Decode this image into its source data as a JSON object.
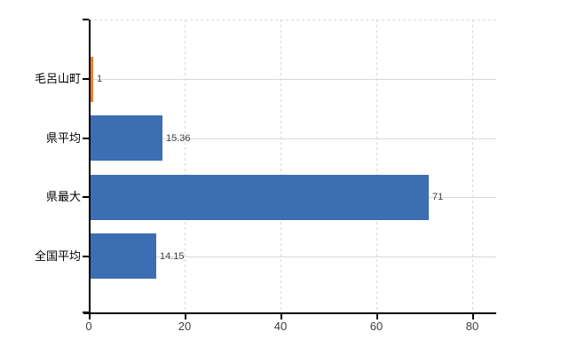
{
  "chart_data": {
    "type": "bar",
    "orientation": "horizontal",
    "title": "",
    "categories": [
      "毛呂山町",
      "県平均",
      "県最大",
      "全国平均"
    ],
    "series": [
      {
        "name": "",
        "values": [
          1,
          15.36,
          71,
          14.15
        ]
      }
    ],
    "value_labels": [
      "1",
      "15.36",
      "71",
      "14.15"
    ],
    "bar_colors": [
      "#ed7d31",
      "#3c6eb4",
      "#3c6eb4",
      "#3c6eb4"
    ],
    "default_bar_color": "#3c6eb4",
    "highlight_bar_color": "#ed7d31",
    "x_ticks": [
      "0",
      "20",
      "40",
      "60",
      "80"
    ],
    "xlim": [
      0,
      85
    ],
    "grid": true,
    "legend_position": "none",
    "axis_color": "#000000",
    "grid_color": "#d9d9d9",
    "category_label_color": "#000000",
    "tick_label_color": "#404040",
    "value_label_color": "#404040",
    "background_color": "#ffffff"
  }
}
